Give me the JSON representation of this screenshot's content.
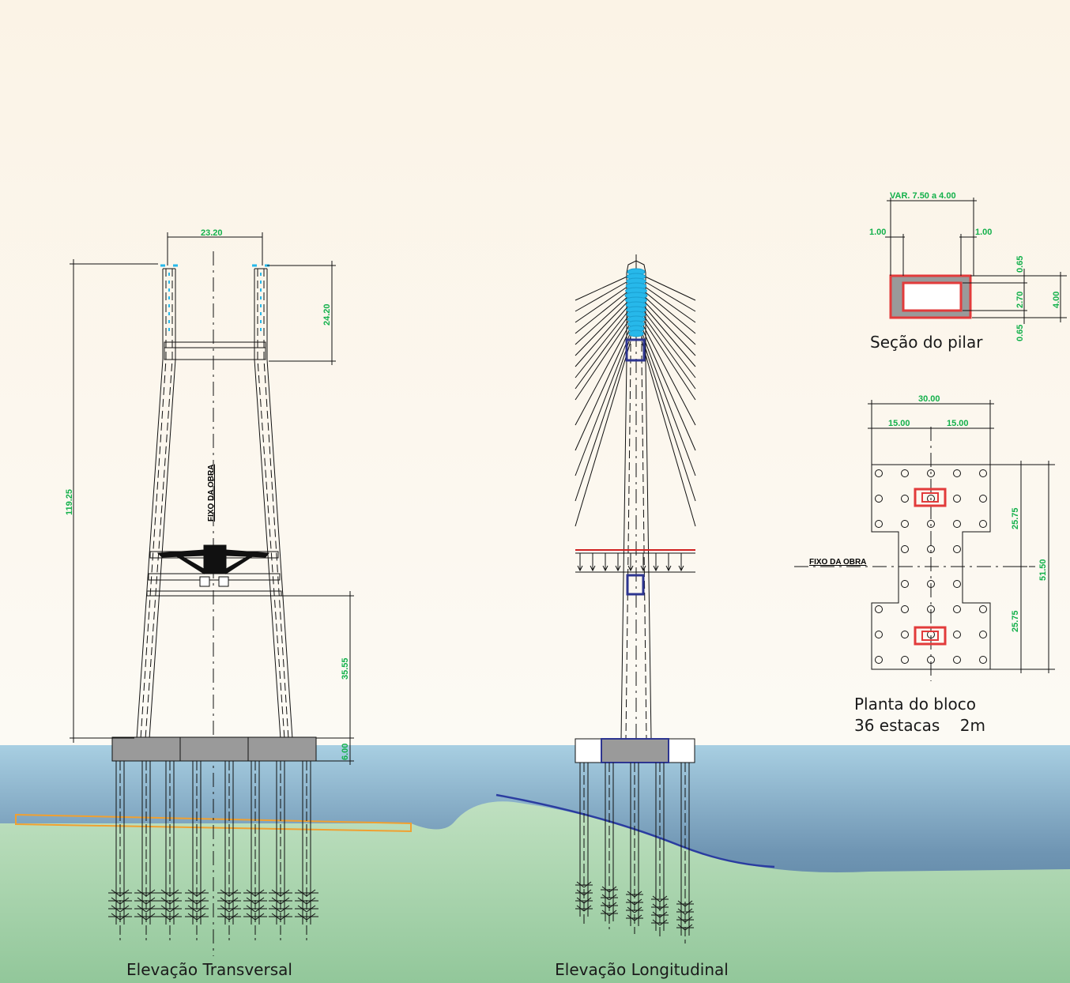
{
  "captions": {
    "transversal": "Elevação Transversal",
    "longitudinal": "Elevação Longitudinal",
    "section": "Seção do pilar",
    "plan_line1": "Planta do bloco",
    "plan_line2": "36 estacas    2m"
  },
  "labels": {
    "fixo_transversal": "FIXO DA OBRA",
    "fixo_plan": "FIXO DA OBRA"
  },
  "dimensions": {
    "tower_spacing": "23.20",
    "upper_height": "24.20",
    "total_height": "119.25",
    "lower_height": "35.55",
    "block_height": "6.00",
    "section_width": "VAR. 7.50 a 4.00",
    "wall_left": "1.00",
    "wall_right": "1.00",
    "wall_top": "0.65",
    "inner": "2.70",
    "wall_bottom": "0.65",
    "section_depth": "4.00",
    "block_width": "30.00",
    "half_left": "15.00",
    "half_right": "15.00",
    "half_top": "25.75",
    "half_bottom": "25.75",
    "block_length": "51.50"
  },
  "colors": {
    "background_top": "#fbf3e6",
    "water_top": "#a8cfe2",
    "water_bottom": "#4a7393",
    "ground": "#a6d2ae",
    "dimension_text": "#12b04a",
    "stay_cables": "#27b8ea",
    "section_outline": "#e23b3b",
    "anchorage_box": "#2d3590",
    "embankment_line": "#f0a030"
  }
}
